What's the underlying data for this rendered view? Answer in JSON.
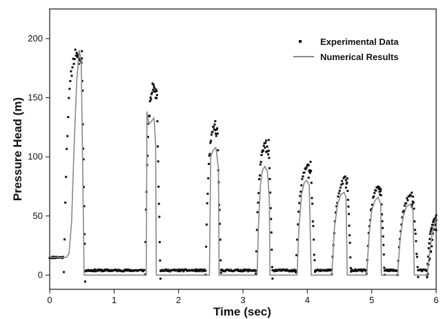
{
  "chart_data": {
    "type": "scatter",
    "xlabel": "Time (sec)",
    "ylabel": "Pressure Head (m)",
    "xlim": [
      0,
      6
    ],
    "ylim": [
      -12,
      225
    ],
    "xticks": [
      0,
      1,
      2,
      3,
      4,
      5,
      6
    ],
    "yticks": [
      0,
      50,
      100,
      150,
      200
    ],
    "grid": false,
    "legend_position": "top-right",
    "series": [
      {
        "name": "Experimental Data",
        "style": "square markers",
        "color": "#111111",
        "pulses": [
          {
            "start": 0.22,
            "rise_end": 0.42,
            "peak": 190,
            "fall_start": 0.5,
            "end": 0.55
          },
          {
            "start": 1.48,
            "rise_end": 1.62,
            "peak": 162,
            "fall_start": 1.66,
            "end": 1.72
          },
          {
            "start": 2.42,
            "rise_end": 2.57,
            "peak": 128,
            "fall_start": 2.6,
            "end": 2.66
          },
          {
            "start": 3.2,
            "rise_end": 3.36,
            "peak": 112,
            "fall_start": 3.4,
            "end": 3.46
          },
          {
            "start": 3.82,
            "rise_end": 4.02,
            "peak": 95,
            "fall_start": 4.05,
            "end": 4.12
          },
          {
            "start": 4.38,
            "rise_end": 4.6,
            "peak": 82,
            "fall_start": 4.62,
            "end": 4.68
          },
          {
            "start": 4.92,
            "rise_end": 5.12,
            "peak": 75,
            "fall_start": 5.14,
            "end": 5.2
          },
          {
            "start": 5.4,
            "rise_end": 5.62,
            "peak": 68,
            "fall_start": 5.64,
            "end": 5.72
          },
          {
            "start": 5.86,
            "rise_end": 6.0,
            "peak": 48,
            "fall_start": 6.0,
            "end": 6.0
          }
        ],
        "initial_level": 15,
        "baseline_level": 4
      },
      {
        "name": "Numerical Results",
        "style": "line",
        "color": "#888888",
        "points": [
          [
            0.0,
            15
          ],
          [
            0.26,
            15
          ],
          [
            0.3,
            18
          ],
          [
            0.34,
            45
          ],
          [
            0.38,
            110
          ],
          [
            0.42,
            165
          ],
          [
            0.46,
            190
          ],
          [
            0.49,
            180
          ],
          [
            0.52,
            60
          ],
          [
            0.535,
            0
          ],
          [
            1.5,
            0
          ],
          [
            1.51,
            138
          ],
          [
            1.54,
            128
          ],
          [
            1.58,
            130
          ],
          [
            1.62,
            133
          ],
          [
            1.645,
            110
          ],
          [
            1.655,
            0
          ],
          [
            2.48,
            0
          ],
          [
            2.5,
            100
          ],
          [
            2.54,
            106
          ],
          [
            2.58,
            108
          ],
          [
            2.62,
            90
          ],
          [
            2.63,
            0
          ],
          [
            3.22,
            0
          ],
          [
            3.24,
            40
          ],
          [
            3.27,
            75
          ],
          [
            3.3,
            88
          ],
          [
            3.34,
            92
          ],
          [
            3.38,
            88
          ],
          [
            3.41,
            65
          ],
          [
            3.42,
            0
          ],
          [
            3.84,
            0
          ],
          [
            3.87,
            40
          ],
          [
            3.91,
            68
          ],
          [
            3.95,
            78
          ],
          [
            3.99,
            80
          ],
          [
            4.03,
            76
          ],
          [
            4.06,
            0
          ],
          [
            4.38,
            0
          ],
          [
            4.42,
            40
          ],
          [
            4.47,
            60
          ],
          [
            4.52,
            68
          ],
          [
            4.57,
            70
          ],
          [
            4.6,
            66
          ],
          [
            4.62,
            0
          ],
          [
            4.92,
            0
          ],
          [
            4.96,
            35
          ],
          [
            5.0,
            55
          ],
          [
            5.05,
            63
          ],
          [
            5.1,
            66
          ],
          [
            5.14,
            60
          ],
          [
            5.15,
            0
          ],
          [
            5.4,
            0
          ],
          [
            5.44,
            30
          ],
          [
            5.49,
            50
          ],
          [
            5.54,
            58
          ],
          [
            5.6,
            60
          ],
          [
            5.64,
            55
          ],
          [
            5.66,
            0
          ],
          [
            5.86,
            0
          ],
          [
            5.9,
            20
          ],
          [
            5.94,
            35
          ],
          [
            5.98,
            45
          ],
          [
            6.0,
            48
          ]
        ]
      }
    ]
  }
}
